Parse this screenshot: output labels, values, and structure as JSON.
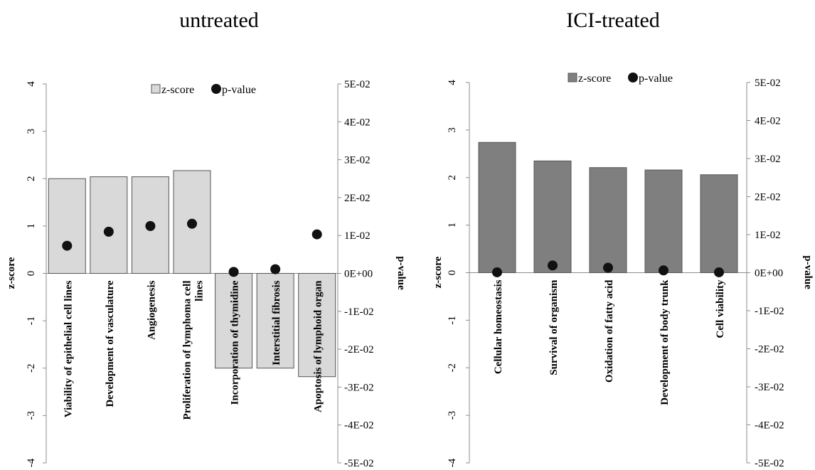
{
  "chart_data": [
    {
      "type": "bar",
      "title": "untreated",
      "ylabel": "z-score",
      "y2label": "p-value",
      "ylim": [
        -4,
        4
      ],
      "y2lim": [
        -0.05,
        0.05
      ],
      "yticks": [
        "-4",
        "-3",
        "-2",
        "-1",
        "0",
        "1",
        "2",
        "3",
        "4"
      ],
      "y2ticks": [
        "-5E-02",
        "-4E-02",
        "-3E-02",
        "-2E-02",
        "-1E-02",
        "0E+00",
        "1E-02",
        "2E-02",
        "3E-02",
        "4E-02",
        "5E-02"
      ],
      "categories": [
        [
          "Viability of epithelial cell lines"
        ],
        [
          "Development of vasculature"
        ],
        [
          "Angiogenesis"
        ],
        [
          "Proliferation of lymphoma cell",
          "lines"
        ],
        [
          "Incorporation of thymidine"
        ],
        [
          "Interstitial fibrosis"
        ],
        [
          "Apoptosis of lymphoid organ"
        ]
      ],
      "series": [
        {
          "name": "z-score",
          "axis": "left",
          "kind": "bar",
          "color": "#d9d9d9",
          "values": [
            2.0,
            2.04,
            2.04,
            2.17,
            -2.0,
            -2.0,
            -2.18
          ]
        },
        {
          "name": "p-value",
          "axis": "right",
          "kind": "dot",
          "color": "#111111",
          "values": [
            0.0073,
            0.011,
            0.0125,
            0.0131,
            0.0004,
            0.0011,
            0.0103
          ]
        }
      ],
      "legend": "top-center",
      "grid": false
    },
    {
      "type": "bar",
      "title": "ICI-treated",
      "ylabel": "z-score",
      "y2label": "p-value",
      "ylim": [
        -4,
        4
      ],
      "y2lim": [
        -0.05,
        0.05
      ],
      "yticks": [
        "-4",
        "-3",
        "-2",
        "-1",
        "0",
        "1",
        "2",
        "3",
        "4"
      ],
      "y2ticks": [
        "-5E-02",
        "-4E-02",
        "-3E-02",
        "-2E-02",
        "-1E-02",
        "0E+00",
        "1E-02",
        "2E-02",
        "3E-02",
        "4E-02",
        "5E-02"
      ],
      "categories": [
        [
          "Cellular homeostasis"
        ],
        [
          "Survival of organism"
        ],
        [
          "Oxidation of fatty acid"
        ],
        [
          "Development of body trunk"
        ],
        [
          "Cell viability"
        ]
      ],
      "series": [
        {
          "name": "z-score",
          "axis": "left",
          "kind": "bar",
          "color": "#7f7f7f",
          "values": [
            2.74,
            2.35,
            2.21,
            2.16,
            2.06
          ]
        },
        {
          "name": "p-value",
          "axis": "right",
          "kind": "dot",
          "color": "#111111",
          "values": [
            0.0001,
            0.0019,
            0.0013,
            0.0006,
            0.0001
          ]
        }
      ],
      "legend": "top-center",
      "grid": false
    }
  ]
}
